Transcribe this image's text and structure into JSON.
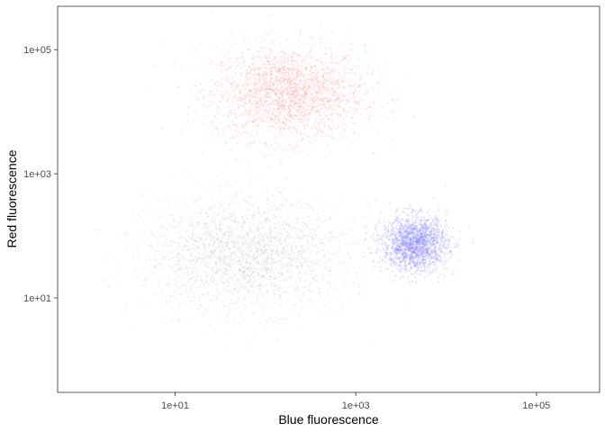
{
  "chart_data": {
    "type": "scatter",
    "title": "",
    "xlabel": "Blue fluorescence",
    "ylabel": "Red fluorescence",
    "x_scale": "log10",
    "y_scale": "log10",
    "xlim": [
      0.5,
      500000
    ],
    "ylim": [
      0.3,
      500000
    ],
    "x_ticks": [
      {
        "value": 10,
        "label": "1e+01"
      },
      {
        "value": 1000,
        "label": "1e+03"
      },
      {
        "value": 100000,
        "label": "1e+05"
      }
    ],
    "y_ticks": [
      {
        "value": 10,
        "label": "1e+01"
      },
      {
        "value": 1000,
        "label": "1e+03"
      },
      {
        "value": 100000,
        "label": "1e+05"
      }
    ],
    "grid": false,
    "legend": "none",
    "series": [
      {
        "color": "#ff6b6b",
        "opacity": 0.12,
        "approx_points": 2200,
        "center": {
          "x": 180,
          "y": 20000
        },
        "spread_decades": {
          "x": 0.42,
          "y": 0.38
        }
      },
      {
        "color": "#9a9a9a",
        "opacity": 0.1,
        "approx_points": 2400,
        "center": {
          "x": 60,
          "y": 50
        },
        "spread_decades": {
          "x": 0.55,
          "y": 0.45
        }
      },
      {
        "color": "#6b6bff",
        "opacity": 0.14,
        "approx_points": 1800,
        "center": {
          "x": 4500,
          "y": 75
        },
        "spread_decades": {
          "x": 0.18,
          "y": 0.22
        }
      }
    ]
  }
}
